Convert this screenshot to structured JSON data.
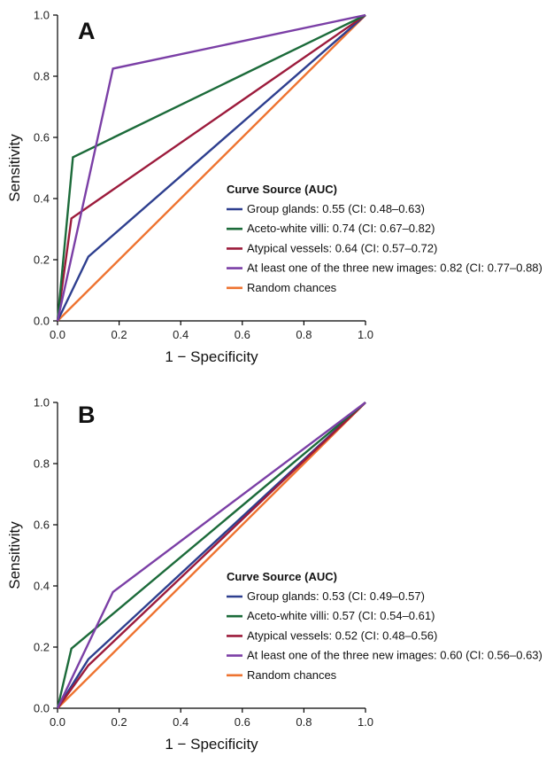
{
  "chart_data": [
    {
      "type": "line",
      "panel": "A",
      "xlabel": "1 − Specificity",
      "ylabel": "Sensitivity",
      "xlim": [
        0,
        1
      ],
      "ylim": [
        0,
        1
      ],
      "xticks": [
        "0.0",
        "0.2",
        "0.4",
        "0.6",
        "0.8",
        "1.0"
      ],
      "yticks": [
        "0.0",
        "0.2",
        "0.4",
        "0.6",
        "0.8",
        "1.0"
      ],
      "legend_title": "Curve Source (AUC)",
      "legend_position": "lower-right",
      "series": [
        {
          "name": "Group glands: 0.55 (CI: 0.48–0.63)",
          "color": "#2e3f8f",
          "points": [
            [
              0,
              0
            ],
            [
              0.1,
              0.21
            ],
            [
              1,
              1
            ]
          ]
        },
        {
          "name": "Aceto-white villi: 0.74 (CI: 0.67–0.82)",
          "color": "#1c6b3a",
          "points": [
            [
              0,
              0
            ],
            [
              0.05,
              0.535
            ],
            [
              1,
              1
            ]
          ]
        },
        {
          "name": "Atypical vessels: 0.64 (CI: 0.57–0.72)",
          "color": "#9c1b3c",
          "points": [
            [
              0,
              0
            ],
            [
              0.045,
              0.335
            ],
            [
              1,
              1
            ]
          ]
        },
        {
          "name": "At least one of the three new images: 0.82 (CI: 0.77–0.88)",
          "color": "#7b3fa6",
          "points": [
            [
              0,
              0
            ],
            [
              0.18,
              0.825
            ],
            [
              1,
              1
            ]
          ]
        },
        {
          "name": "Random chances",
          "color": "#ee7330",
          "points": [
            [
              0,
              0
            ],
            [
              1,
              1
            ]
          ]
        }
      ]
    },
    {
      "type": "line",
      "panel": "B",
      "xlabel": "1 − Specificity",
      "ylabel": "Sensitivity",
      "xlim": [
        0,
        1
      ],
      "ylim": [
        0,
        1
      ],
      "xticks": [
        "0.0",
        "0.2",
        "0.4",
        "0.6",
        "0.8",
        "1.0"
      ],
      "yticks": [
        "0.0",
        "0.2",
        "0.4",
        "0.6",
        "0.8",
        "1.0"
      ],
      "legend_title": "Curve Source (AUC)",
      "legend_position": "lower-right",
      "series": [
        {
          "name": "Group glands: 0.53 (CI: 0.49–0.57)",
          "color": "#2e3f8f",
          "points": [
            [
              0,
              0
            ],
            [
              0.1,
              0.16
            ],
            [
              1,
              1
            ]
          ]
        },
        {
          "name": "Aceto-white villi: 0.57 (CI: 0.54–0.61)",
          "color": "#1c6b3a",
          "points": [
            [
              0,
              0
            ],
            [
              0.045,
              0.195
            ],
            [
              1,
              1
            ]
          ]
        },
        {
          "name": "Atypical vessels: 0.52 (CI: 0.48–0.56)",
          "color": "#9c1b3c",
          "points": [
            [
              0,
              0
            ],
            [
              0.1,
              0.14
            ],
            [
              1,
              1
            ]
          ]
        },
        {
          "name": "At least one of the three new images: 0.60 (CI: 0.56–0.63)",
          "color": "#7b3fa6",
          "points": [
            [
              0,
              0
            ],
            [
              0.18,
              0.38
            ],
            [
              1,
              1
            ]
          ]
        },
        {
          "name": "Random chances",
          "color": "#ee7330",
          "points": [
            [
              0,
              0
            ],
            [
              1,
              1
            ]
          ]
        }
      ]
    }
  ]
}
